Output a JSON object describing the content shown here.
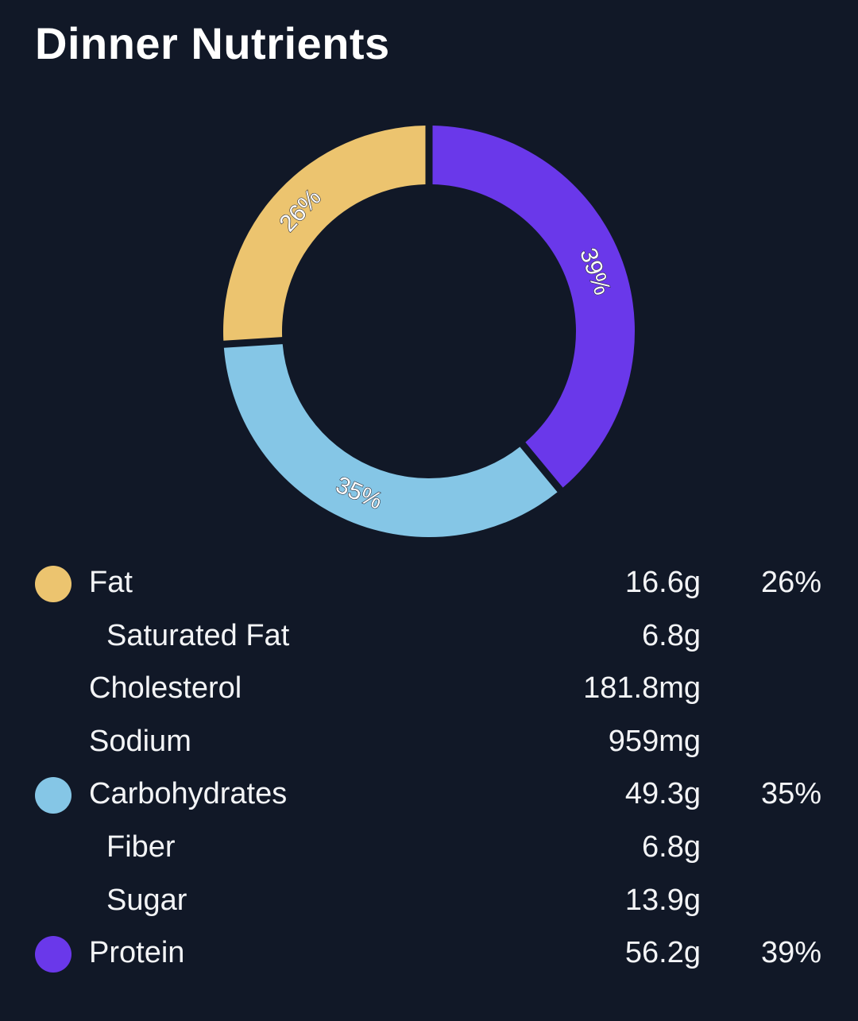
{
  "page": {
    "title": "Dinner Nutrients"
  },
  "chart_data": {
    "type": "pie",
    "variant": "donut",
    "categories": [
      "Fat",
      "Carbohydrates",
      "Protein"
    ],
    "values": [
      26,
      35,
      39
    ],
    "labels": [
      "26%",
      "35%",
      "39%"
    ],
    "colors": [
      "#ecc46f",
      "#85c6e6",
      "#6a38ea"
    ]
  },
  "legend": {
    "rows": [
      {
        "name": "Fat",
        "amount": "16.6g",
        "percent": "26%",
        "color": "#ecc46f",
        "sub": false
      },
      {
        "name": "Saturated Fat",
        "amount": "6.8g",
        "percent": "",
        "color": "",
        "sub": true
      },
      {
        "name": "Cholesterol",
        "amount": "181.8mg",
        "percent": "",
        "color": "",
        "sub": false
      },
      {
        "name": "Sodium",
        "amount": "959mg",
        "percent": "",
        "color": "",
        "sub": false
      },
      {
        "name": "Carbohydrates",
        "amount": "49.3g",
        "percent": "35%",
        "color": "#85c6e6",
        "sub": false
      },
      {
        "name": "Fiber",
        "amount": "6.8g",
        "percent": "",
        "color": "",
        "sub": true
      },
      {
        "name": "Sugar",
        "amount": "13.9g",
        "percent": "",
        "color": "",
        "sub": true
      },
      {
        "name": "Protein",
        "amount": "56.2g",
        "percent": "39%",
        "color": "#6a38ea",
        "sub": false
      }
    ]
  }
}
